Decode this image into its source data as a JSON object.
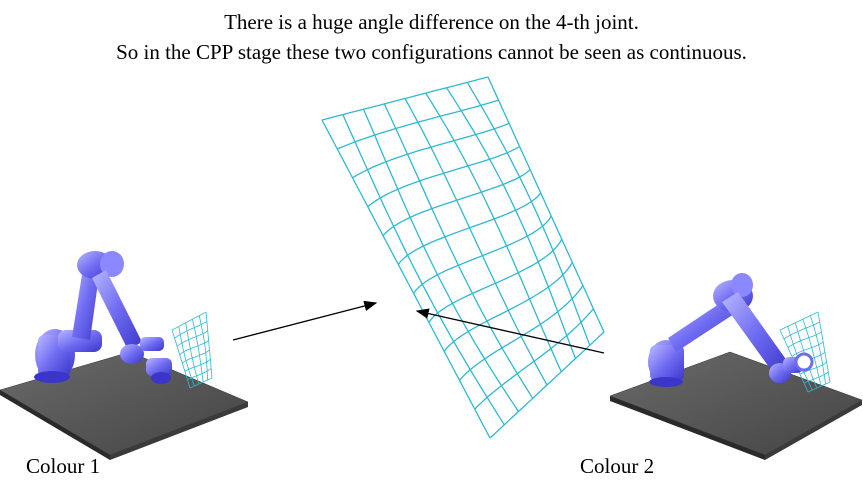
{
  "caption": {
    "line1": "There is a huge angle difference on the 4-th joint.",
    "line2": "So in the CPP stage these two configurations cannot be seen as continuous."
  },
  "labels": {
    "left": "Colour 1",
    "right": "Colour 2"
  },
  "colors": {
    "mesh": "#2fb8d2",
    "robot": "#6f6cf2",
    "robot_dark": "#3b36c9",
    "robot_light": "#b5b3ff",
    "table_top": "#5a5a5a",
    "table_side": "#2a2a2a",
    "arrow": "#000000"
  },
  "icons": {
    "left_robot": "robot-arm-illustration",
    "right_robot": "robot-arm-illustration",
    "mesh": "surface-grid-mesh"
  }
}
